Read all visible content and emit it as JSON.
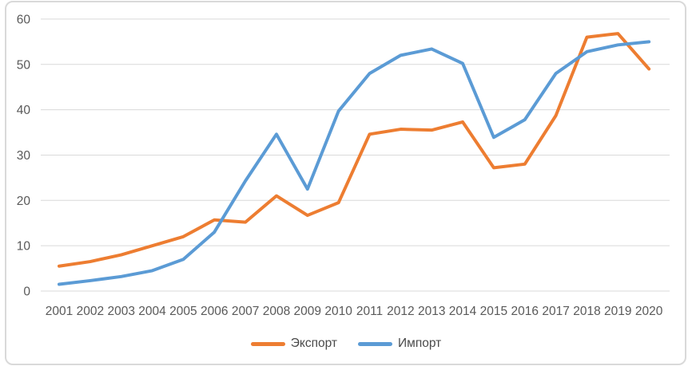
{
  "chart_data": {
    "type": "line",
    "title": "",
    "xlabel": "",
    "ylabel": "",
    "categories": [
      "2001",
      "2002",
      "2003",
      "2004",
      "2005",
      "2006",
      "2007",
      "2008",
      "2009",
      "2010",
      "2011",
      "2012",
      "2013",
      "2014",
      "2015",
      "2016",
      "2017",
      "2018",
      "2019",
      "2020"
    ],
    "series": [
      {
        "name": "Экспорт",
        "color": "#ED7D31",
        "values": [
          5.5,
          6.5,
          8.0,
          10.0,
          12.0,
          15.7,
          15.2,
          21.0,
          16.7,
          19.5,
          34.6,
          35.7,
          35.5,
          37.3,
          27.2,
          28.0,
          38.7,
          56.0,
          56.8,
          49.0
        ]
      },
      {
        "name": "Импорт",
        "color": "#5B9BD5",
        "values": [
          1.5,
          2.3,
          3.2,
          4.5,
          7.0,
          13.0,
          24.3,
          34.6,
          22.5,
          39.7,
          48.0,
          52.0,
          53.4,
          50.2,
          33.9,
          37.8,
          48.0,
          52.8,
          54.3,
          55.0
        ]
      }
    ],
    "ylim": [
      0,
      60
    ],
    "yticks": [
      0,
      10,
      20,
      30,
      40,
      50,
      60
    ],
    "grid": "horizontal",
    "legend_position": "bottom"
  },
  "colors": {
    "export_line": "#ED7D31",
    "import_line": "#5B9BD5",
    "gridline": "#D9D9D9",
    "axis_label_text": "#595959",
    "legend_text": "#4A4A4A",
    "frame_border": "#D9D9D9",
    "background": "#FFFFFF"
  }
}
